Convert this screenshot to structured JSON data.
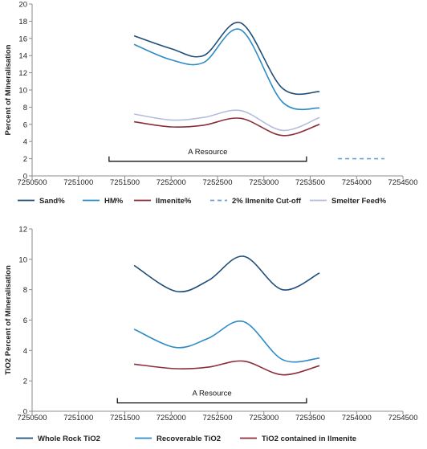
{
  "chart_data": [
    {
      "type": "line",
      "xlabel": "",
      "ylabel": "Percent of Mineralisation",
      "xlim": [
        7250500,
        7254500
      ],
      "ylim": [
        0,
        20
      ],
      "x_ticks": [
        "7250500",
        "7251000",
        "7251500",
        "7252000",
        "7252500",
        "7253000",
        "7253500",
        "7254000",
        "7254500"
      ],
      "y_ticks": [
        "0",
        "2",
        "4",
        "6",
        "8",
        "10",
        "12",
        "14",
        "16",
        "18",
        "20"
      ],
      "grid": false,
      "legend_position": "bottom",
      "series": [
        {
          "name": "Sand%",
          "color": "#1f4e79",
          "dash": "",
          "x": [
            7251600,
            7252000,
            7252350,
            7252750,
            7253200,
            7253600
          ],
          "y": [
            16.3,
            14.8,
            14.0,
            17.8,
            10.2,
            9.8
          ]
        },
        {
          "name": "HM%",
          "color": "#2e8bc6",
          "dash": "",
          "x": [
            7251600,
            7252000,
            7252350,
            7252750,
            7253200,
            7253600
          ],
          "y": [
            15.3,
            13.5,
            13.2,
            17.0,
            8.6,
            7.9
          ]
        },
        {
          "name": "Ilmenite%",
          "color": "#8b2e3a",
          "dash": "",
          "x": [
            7251600,
            7252000,
            7252350,
            7252750,
            7253200,
            7253600
          ],
          "y": [
            6.3,
            5.7,
            5.9,
            6.7,
            4.7,
            6.0
          ]
        },
        {
          "name": "2% Ilmenite Cut-off",
          "color": "#6aa0d6",
          "dash": "5,4",
          "x": [
            7253800,
            7254300
          ],
          "y": [
            2.0,
            2.0
          ]
        },
        {
          "name": "Smelter Feed%",
          "color": "#b4bedc",
          "dash": "",
          "x": [
            7251600,
            7252000,
            7252350,
            7252750,
            7253200,
            7253600
          ],
          "y": [
            7.2,
            6.5,
            6.8,
            7.6,
            5.3,
            6.8
          ]
        }
      ],
      "annotation": {
        "text": "A Resource",
        "x_start": 7251330,
        "x_end": 7253460,
        "y": 1.7
      }
    },
    {
      "type": "line",
      "xlabel": "",
      "ylabel": "TiO2 Percent of Mineralisation",
      "xlim": [
        7250500,
        7254500
      ],
      "ylim": [
        0,
        12
      ],
      "x_ticks": [
        "7250500",
        "7251000",
        "7251500",
        "7252000",
        "7252500",
        "7253000",
        "7253500",
        "7254000",
        "7254500"
      ],
      "y_ticks": [
        "0",
        "2",
        "4",
        "6",
        "8",
        "10",
        "12"
      ],
      "grid": false,
      "legend_position": "bottom",
      "series": [
        {
          "name": "Whole Rock TiO2",
          "color": "#1f4e79",
          "dash": "",
          "x": [
            7251600,
            7252050,
            7252400,
            7252780,
            7253200,
            7253600
          ],
          "y": [
            9.6,
            7.9,
            8.6,
            10.2,
            8.0,
            9.1
          ]
        },
        {
          "name": "Recoverable TiO2",
          "color": "#2e8bc6",
          "dash": "",
          "x": [
            7251600,
            7252050,
            7252400,
            7252780,
            7253200,
            7253600
          ],
          "y": [
            5.4,
            4.2,
            4.8,
            5.9,
            3.4,
            3.5
          ]
        },
        {
          "name": "TiO2 contained in Ilmenite",
          "color": "#8b2e3a",
          "dash": "",
          "x": [
            7251600,
            7252050,
            7252400,
            7252780,
            7253200,
            7253600
          ],
          "y": [
            3.1,
            2.8,
            2.9,
            3.3,
            2.4,
            3.0
          ]
        }
      ],
      "annotation": {
        "text": "A Resource",
        "x_start": 7251420,
        "x_end": 7253460,
        "y": 0.55
      }
    }
  ]
}
